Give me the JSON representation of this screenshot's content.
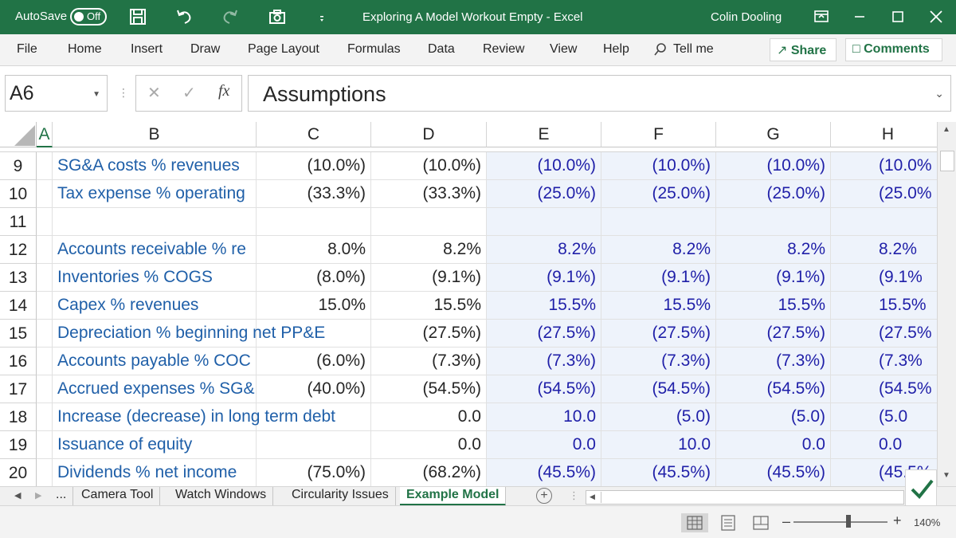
{
  "titlebar": {
    "autosave_label": "AutoSave",
    "autosave_state": "Off",
    "doc_title": "Exploring A Model Workout Empty  -  Excel",
    "user": "Colin Dooling"
  },
  "ribbon": {
    "tabs": [
      "File",
      "Home",
      "Insert",
      "Draw",
      "Page Layout",
      "Formulas",
      "Data",
      "Review",
      "View",
      "Help",
      "Tell me"
    ],
    "share_label": "Share",
    "comments_label": "Comments"
  },
  "formula_bar": {
    "name_box": "A6",
    "fx_label": "fx",
    "content": "Assumptions"
  },
  "grid": {
    "columns": [
      "A",
      "B",
      "C",
      "D",
      "E",
      "F",
      "G",
      "H"
    ],
    "rows": [
      {
        "num": "9",
        "label": "SG&A costs % revenues",
        "c": "(10.0%)",
        "d": "(10.0%)",
        "e": "(10.0%)",
        "f": "(10.0%)",
        "g": "(10.0%)",
        "h": "(10.0%"
      },
      {
        "num": "10",
        "label": "Tax expense % operating",
        "c": "(33.3%)",
        "d": "(33.3%)",
        "e": "(25.0%)",
        "f": "(25.0%)",
        "g": "(25.0%)",
        "h": "(25.0%"
      },
      {
        "num": "11",
        "label": "",
        "c": "",
        "d": "",
        "e": "",
        "f": "",
        "g": "",
        "h": ""
      },
      {
        "num": "12",
        "label": "Accounts receivable % re",
        "c": "8.0%",
        "d": "8.2%",
        "e": "8.2%",
        "f": "8.2%",
        "g": "8.2%",
        "h": "8.2%"
      },
      {
        "num": "13",
        "label": "Inventories % COGS",
        "c": "(8.0%)",
        "d": "(9.1%)",
        "e": "(9.1%)",
        "f": "(9.1%)",
        "g": "(9.1%)",
        "h": "(9.1%"
      },
      {
        "num": "14",
        "label": "Capex % revenues",
        "c": "15.0%",
        "d": "15.5%",
        "e": "15.5%",
        "f": "15.5%",
        "g": "15.5%",
        "h": "15.5%"
      },
      {
        "num": "15",
        "label": "Depreciation % beginning net PP&E",
        "c": "",
        "d": "(27.5%)",
        "e": "(27.5%)",
        "f": "(27.5%)",
        "g": "(27.5%)",
        "h": "(27.5%"
      },
      {
        "num": "16",
        "label": "Accounts payable % COC",
        "c": "(6.0%)",
        "d": "(7.3%)",
        "e": "(7.3%)",
        "f": "(7.3%)",
        "g": "(7.3%)",
        "h": "(7.3%"
      },
      {
        "num": "17",
        "label": "Accrued expenses % SG&",
        "c": "(40.0%)",
        "d": "(54.5%)",
        "e": "(54.5%)",
        "f": "(54.5%)",
        "g": "(54.5%)",
        "h": "(54.5%"
      },
      {
        "num": "18",
        "label": "Increase (decrease) in long term debt",
        "c": "",
        "d": "0.0",
        "e": "10.0",
        "f": "(5.0)",
        "g": "(5.0)",
        "h": "(5.0"
      },
      {
        "num": "19",
        "label": "Issuance of equity",
        "c": "",
        "d": "0.0",
        "e": "0.0",
        "f": "10.0",
        "g": "0.0",
        "h": "0.0"
      },
      {
        "num": "20",
        "label": "Dividends % net income",
        "c": "(75.0%)",
        "d": "(68.2%)",
        "e": "(45.5%)",
        "f": "(45.5%)",
        "g": "(45.5%)",
        "h": "(45.5%"
      }
    ]
  },
  "sheet_tabs": {
    "ellipsis": "...",
    "tabs": [
      "Camera Tool",
      "Watch Windows",
      "Circularity Issues",
      "Example Model"
    ],
    "active": "Example Model"
  },
  "status": {
    "zoom": "140%"
  }
}
